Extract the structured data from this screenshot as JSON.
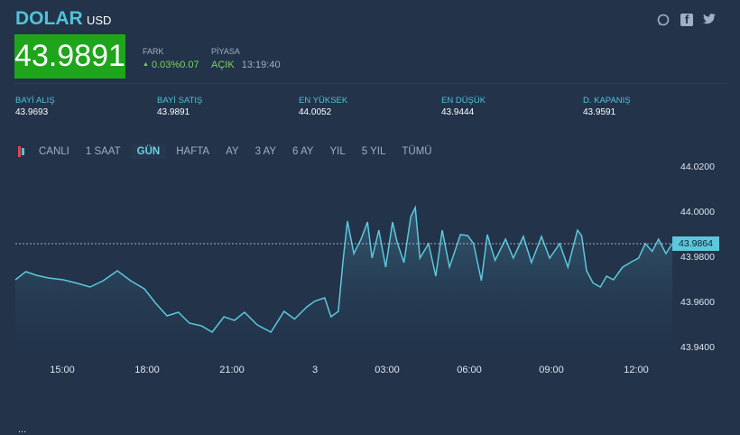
{
  "header": {
    "title": "DOLAR",
    "currency": "USD",
    "price": "43.9891",
    "fark_label": "FARK",
    "fark_value": "0.03%0.07",
    "fark_icon": "triangle-up-icon",
    "piyasa_label": "PİYASA",
    "piyasa_status": "AÇIK",
    "piyasa_time": "13:19:40"
  },
  "social": [
    {
      "icon": "whatsapp-icon",
      "glyph": "◎"
    },
    {
      "icon": "facebook-icon",
      "glyph": "f"
    },
    {
      "icon": "twitter-icon",
      "glyph": "🐦"
    }
  ],
  "stats": [
    {
      "label": "BAYİ ALIŞ",
      "value": "43.9693"
    },
    {
      "label": "BAYİ SATIŞ",
      "value": "43.9891"
    },
    {
      "label": "EN YÜKSEK",
      "value": "44.0052"
    },
    {
      "label": "EN DÜŞÜK",
      "value": "43.9444"
    },
    {
      "label": "D. KAPANIŞ",
      "value": "43.9591"
    }
  ],
  "tabs": [
    "CANLI",
    "1 SAAT",
    "GÜN",
    "HAFTA",
    "AY",
    "3 AY",
    "6 AY",
    "YIL",
    "5 YIL",
    "TÜMÜ"
  ],
  "active_tab": "GÜN",
  "colors": {
    "background": "#22334a",
    "price_box": "#1fa51c",
    "accent": "#4fc3d9",
    "line": "#5bc8dc",
    "up": "#7fd35a"
  },
  "chart_data": {
    "type": "area",
    "ylim": [
      43.938,
      44.024
    ],
    "yticks": [
      "44.0200",
      "44.0000",
      "43.9800",
      "43.9600",
      "43.9400"
    ],
    "xticks": [
      "15:00",
      "18:00",
      "21:00",
      "3",
      "03:00",
      "06:00",
      "09:00",
      "12:00"
    ],
    "last_value": "43.9864",
    "grid": false,
    "points": [
      [
        "13:17",
        43.9704
      ],
      [
        "13:40",
        43.974
      ],
      [
        "14:03",
        43.9724
      ],
      [
        "14:30",
        43.9712
      ],
      [
        "15:02",
        43.9704
      ],
      [
        "15:30",
        43.969
      ],
      [
        "16:01",
        43.9672
      ],
      [
        "16:30",
        43.97
      ],
      [
        "17:01",
        43.9744
      ],
      [
        "17:30",
        43.97
      ],
      [
        "18:00",
        43.9664
      ],
      [
        "18:25",
        43.96
      ],
      [
        "18:50",
        43.9544
      ],
      [
        "19:15",
        43.956
      ],
      [
        "19:39",
        43.9512
      ],
      [
        "20:05",
        43.95
      ],
      [
        "20:29",
        43.9472
      ],
      [
        "20:55",
        43.954
      ],
      [
        "21:18",
        43.9524
      ],
      [
        "21:40",
        43.956
      ],
      [
        "22:08",
        43.9504
      ],
      [
        "22:38",
        43.9472
      ],
      [
        "23:07",
        43.9564
      ],
      [
        "23:30",
        43.953
      ],
      [
        "23:57",
        43.9584
      ],
      [
        "00:15",
        43.961
      ],
      [
        "00:36",
        43.9624
      ],
      [
        "00:50",
        43.954
      ],
      [
        "01:06",
        43.9564
      ],
      [
        "01:16",
        43.9784
      ],
      [
        "01:26",
        43.9964
      ],
      [
        "01:40",
        43.982
      ],
      [
        "01:56",
        43.9884
      ],
      [
        "02:10",
        43.996
      ],
      [
        "02:20",
        43.98
      ],
      [
        "02:35",
        43.9924
      ],
      [
        "02:50",
        43.976
      ],
      [
        "03:05",
        43.996
      ],
      [
        "03:15",
        43.9872
      ],
      [
        "03:30",
        43.978
      ],
      [
        "03:45",
        43.9984
      ],
      [
        "03:55",
        44.0024
      ],
      [
        "04:05",
        43.98
      ],
      [
        "04:24",
        43.9864
      ],
      [
        "04:40",
        43.972
      ],
      [
        "04:54",
        43.9924
      ],
      [
        "05:10",
        43.976
      ],
      [
        "05:34",
        43.9904
      ],
      [
        "05:50",
        43.99
      ],
      [
        "06:03",
        43.9864
      ],
      [
        "06:20",
        43.97
      ],
      [
        "06:33",
        43.9904
      ],
      [
        "06:50",
        43.979
      ],
      [
        "07:13",
        43.9884
      ],
      [
        "07:30",
        43.98
      ],
      [
        "07:52",
        43.9896
      ],
      [
        "08:10",
        43.978
      ],
      [
        "08:32",
        43.9896
      ],
      [
        "08:50",
        43.98
      ],
      [
        "09:12",
        43.9864
      ],
      [
        "09:30",
        43.976
      ],
      [
        "09:51",
        43.9924
      ],
      [
        "10:00",
        43.99
      ],
      [
        "10:11",
        43.9744
      ],
      [
        "10:25",
        43.969
      ],
      [
        "10:41",
        43.9672
      ],
      [
        "10:55",
        43.972
      ],
      [
        "11:10",
        43.9704
      ],
      [
        "11:30",
        43.976
      ],
      [
        "11:50",
        43.9784
      ],
      [
        "12:05",
        43.98
      ],
      [
        "12:20",
        43.9864
      ],
      [
        "12:35",
        43.983
      ],
      [
        "12:49",
        43.9884
      ],
      [
        "13:05",
        43.982
      ],
      [
        "13:19",
        43.9864
      ]
    ]
  },
  "footer": {
    "partial_text": "..."
  }
}
